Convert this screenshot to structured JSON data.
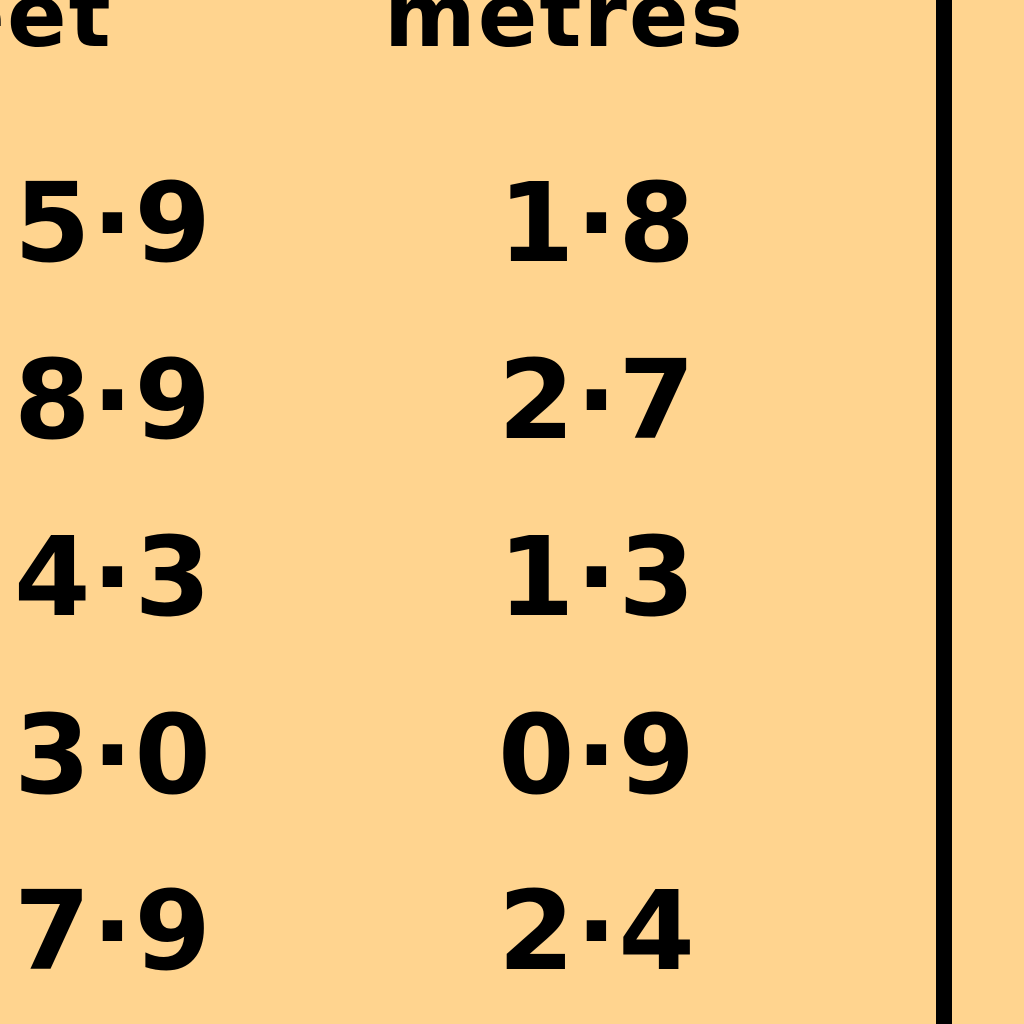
{
  "table": {
    "headers": {
      "feet": "feet",
      "metres": "metres"
    },
    "rows": [
      {
        "feet": "5·9",
        "metres": "1·8"
      },
      {
        "feet": "8·9",
        "metres": "2·7"
      },
      {
        "feet": "4·3",
        "metres": "1·3"
      },
      {
        "feet": "3·0",
        "metres": "0·9"
      },
      {
        "feet": "7·9",
        "metres": "2·4"
      }
    ]
  },
  "colors": {
    "background": "#FFD48F",
    "text": "#000000"
  }
}
